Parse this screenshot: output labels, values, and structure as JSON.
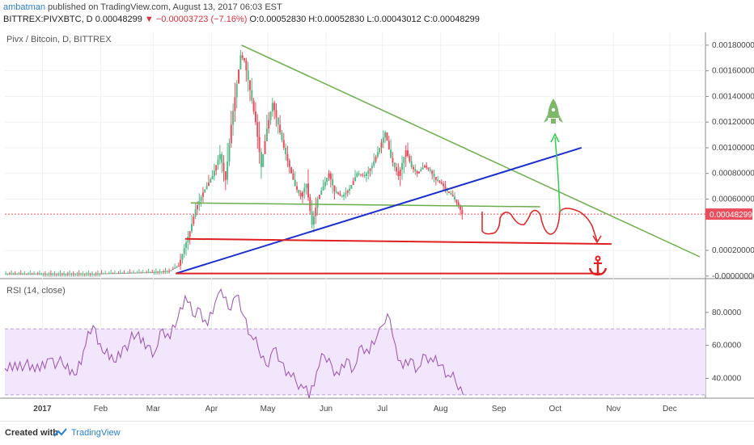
{
  "header": {
    "user": "ambatman",
    "published_text": "published on TradingView.com, August 13, 2017 06:03 EST",
    "symbol_line": "BITTREX:PIVXBTC, D",
    "last": "0.00048299",
    "change": "−0.00003723 (−7.16%)",
    "ohlc": "O:0.00052830 H:0.00052830 L:0.00043012 C:0.00048299"
  },
  "price_panel": {
    "title": "Pivx / Bitcoin, D, BITTREX"
  },
  "rsi_panel": {
    "title": "RSI (14, close)"
  },
  "footer": {
    "created": "Created with",
    "brand": "TradingView"
  },
  "colors": {
    "up": "#53b987",
    "down": "#eb4d5c",
    "rsi": "#9c4fb3",
    "rsi_band": "#f1e6fb",
    "green_line": "#6aae4a",
    "blue_line": "#1a2ecf",
    "red_line": "#e02020",
    "last_price": "#eb4d5c"
  },
  "chart_data": [
    {
      "type": "candlestick",
      "title": "Pivx / Bitcoin, D, BITTREX",
      "ylim": [
        -2e-05,
        0.0019
      ],
      "y_ticks": [
        "0.00180000",
        "0.00160000",
        "0.00140000",
        "0.00120000",
        "0.00100000",
        "0.00080000",
        "0.00060000",
        "0.00020000",
        "-0.00000000"
      ],
      "y_tick_values": [
        0.0018,
        0.0016,
        0.0014,
        0.0012,
        0.001,
        0.0008,
        0.0006,
        0.0002,
        0.0
      ],
      "last_price_label": "0.00048299",
      "last_price": 0.00048299,
      "x_ticks": [
        "2017",
        "Feb",
        "Mar",
        "Apr",
        "May",
        "Jun",
        "Jul",
        "Aug",
        "Sep",
        "Oct",
        "Nov",
        "Dec"
      ],
      "x_tick_dates": [
        "2017-01-01",
        "2017-02-01",
        "2017-03-01",
        "2017-04-01",
        "2017-05-01",
        "2017-06-01",
        "2017-07-01",
        "2017-08-01",
        "2017-09-01",
        "2017-10-01",
        "2017-11-01",
        "2017-12-01"
      ],
      "x_range": [
        "2016-12-12",
        "2017-12-20"
      ],
      "close_series": [
        [
          "2016-12-12",
          2e-05
        ],
        [
          "2017-01-01",
          2e-05
        ],
        [
          "2017-02-01",
          2e-05
        ],
        [
          "2017-03-01",
          3e-05
        ],
        [
          "2017-03-10",
          4e-05
        ],
        [
          "2017-03-15",
          8e-05
        ],
        [
          "2017-03-18",
          0.00022
        ],
        [
          "2017-03-21",
          0.00035
        ],
        [
          "2017-03-24",
          0.00052
        ],
        [
          "2017-03-28",
          0.00065
        ],
        [
          "2017-04-02",
          0.00078
        ],
        [
          "2017-04-06",
          0.00095
        ],
        [
          "2017-04-09",
          0.00075
        ],
        [
          "2017-04-12",
          0.00118
        ],
        [
          "2017-04-15",
          0.0015
        ],
        [
          "2017-04-17",
          0.00172
        ],
        [
          "2017-04-19",
          0.00168
        ],
        [
          "2017-04-22",
          0.00145
        ],
        [
          "2017-04-25",
          0.0012
        ],
        [
          "2017-04-28",
          0.00085
        ],
        [
          "2017-05-01",
          0.00115
        ],
        [
          "2017-05-04",
          0.00135
        ],
        [
          "2017-05-07",
          0.00118
        ],
        [
          "2017-05-10",
          0.001
        ],
        [
          "2017-05-13",
          0.00085
        ],
        [
          "2017-05-16",
          0.0007
        ],
        [
          "2017-05-19",
          0.00062
        ],
        [
          "2017-05-22",
          0.00072
        ],
        [
          "2017-05-25",
          0.0004
        ],
        [
          "2017-05-28",
          0.0006
        ],
        [
          "2017-05-31",
          0.0007
        ],
        [
          "2017-06-03",
          0.0008
        ],
        [
          "2017-06-06",
          0.00066
        ],
        [
          "2017-06-10",
          0.00062
        ],
        [
          "2017-06-14",
          0.00068
        ],
        [
          "2017-06-18",
          0.0008
        ],
        [
          "2017-06-22",
          0.00078
        ],
        [
          "2017-06-26",
          0.00086
        ],
        [
          "2017-06-30",
          0.001
        ],
        [
          "2017-07-03",
          0.00112
        ],
        [
          "2017-07-06",
          0.00092
        ],
        [
          "2017-07-10",
          0.00078
        ],
        [
          "2017-07-14",
          0.00098
        ],
        [
          "2017-07-17",
          0.00085
        ],
        [
          "2017-07-20",
          0.0008
        ],
        [
          "2017-07-24",
          0.00086
        ],
        [
          "2017-07-27",
          0.00082
        ],
        [
          "2017-07-30",
          0.00075
        ],
        [
          "2017-08-02",
          0.00072
        ],
        [
          "2017-08-05",
          0.00066
        ],
        [
          "2017-08-08",
          0.00062
        ],
        [
          "2017-08-11",
          0.00055
        ],
        [
          "2017-08-13",
          0.00048299
        ]
      ],
      "annotations": {
        "descending_trendline": [
          [
            "2017-04-17",
            0.0018
          ],
          [
            "2017-12-17",
            0.00015
          ]
        ],
        "ascending_trendline": [
          [
            "2017-03-13",
            2e-05
          ],
          [
            "2017-10-15",
            0.001
          ]
        ],
        "horizontal_support_green": [
          [
            "2017-03-21",
            0.00057
          ],
          [
            "2017-09-23",
            0.00054
          ]
        ],
        "horizontal_support_red_1": [
          [
            "2017-03-18",
            0.00029
          ],
          [
            "2017-10-31",
            0.00025
          ]
        ],
        "horizontal_support_red_2": [
          [
            "2017-03-13",
            2e-05
          ],
          [
            "2017-10-25",
            2e-05
          ]
        ]
      }
    },
    {
      "type": "line",
      "title": "RSI (14, close)",
      "ylim": [
        28,
        98
      ],
      "y_ticks": [
        "80.0000",
        "60.0000",
        "40.0000"
      ],
      "y_tick_values": [
        80,
        60,
        40
      ],
      "band": [
        30,
        70
      ],
      "series": [
        {
          "values": [
            [
              "2016-12-12",
              46
            ],
            [
              "2016-12-20",
              50
            ],
            [
              "2016-12-28",
              44
            ],
            [
              "2017-01-05",
              52
            ],
            [
              "2017-01-12",
              48
            ],
            [
              "2017-01-18",
              42
            ],
            [
              "2017-01-24",
              60
            ],
            [
              "2017-01-28",
              72
            ],
            [
              "2017-02-02",
              56
            ],
            [
              "2017-02-08",
              50
            ],
            [
              "2017-02-14",
              60
            ],
            [
              "2017-02-20",
              66
            ],
            [
              "2017-02-26",
              60
            ],
            [
              "2017-03-02",
              56
            ],
            [
              "2017-03-06",
              70
            ],
            [
              "2017-03-10",
              64
            ],
            [
              "2017-03-14",
              76
            ],
            [
              "2017-03-18",
              90
            ],
            [
              "2017-03-22",
              78
            ],
            [
              "2017-03-26",
              82
            ],
            [
              "2017-03-30",
              72
            ],
            [
              "2017-04-03",
              86
            ],
            [
              "2017-04-06",
              94
            ],
            [
              "2017-04-10",
              82
            ],
            [
              "2017-04-14",
              90
            ],
            [
              "2017-04-18",
              78
            ],
            [
              "2017-04-22",
              66
            ],
            [
              "2017-04-26",
              58
            ],
            [
              "2017-04-30",
              48
            ],
            [
              "2017-05-04",
              58
            ],
            [
              "2017-05-08",
              50
            ],
            [
              "2017-05-12",
              44
            ],
            [
              "2017-05-16",
              38
            ],
            [
              "2017-05-20",
              34
            ],
            [
              "2017-05-23",
              28
            ],
            [
              "2017-05-27",
              44
            ],
            [
              "2017-05-31",
              54
            ],
            [
              "2017-06-04",
              48
            ],
            [
              "2017-06-08",
              42
            ],
            [
              "2017-06-12",
              52
            ],
            [
              "2017-06-16",
              46
            ],
            [
              "2017-06-20",
              60
            ],
            [
              "2017-06-24",
              55
            ],
            [
              "2017-06-28",
              65
            ],
            [
              "2017-07-01",
              72
            ],
            [
              "2017-07-05",
              76
            ],
            [
              "2017-07-08",
              60
            ],
            [
              "2017-07-12",
              46
            ],
            [
              "2017-07-16",
              52
            ],
            [
              "2017-07-20",
              46
            ],
            [
              "2017-07-24",
              54
            ],
            [
              "2017-07-28",
              50
            ],
            [
              "2017-08-01",
              48
            ],
            [
              "2017-08-05",
              42
            ],
            [
              "2017-08-09",
              38
            ],
            [
              "2017-08-13",
              30
            ]
          ]
        }
      ],
      "x_range": [
        "2016-12-12",
        "2017-12-20"
      ]
    }
  ]
}
